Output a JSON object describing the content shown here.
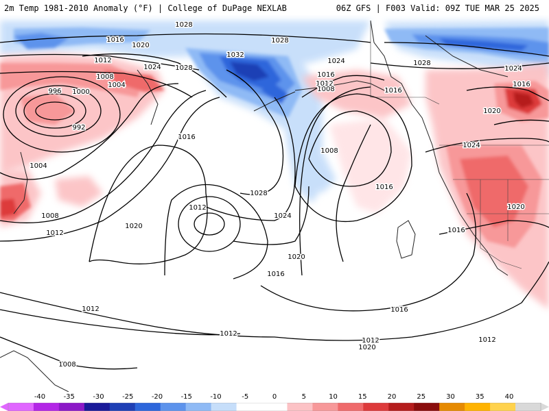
{
  "header": {
    "left_title": "2m Temp 1981-2010 Anomaly (°F) | College of DuPage NEXLAB",
    "right_title": "06Z GFS | F003 Valid: 09Z TUE MAR 25 2025"
  },
  "isobar_labels": [
    {
      "text": "1028"
    },
    {
      "text": "1016"
    },
    {
      "text": "1020"
    },
    {
      "text": "1012"
    },
    {
      "text": "1024"
    },
    {
      "text": "1008"
    },
    {
      "text": "1004"
    },
    {
      "text": "1028"
    },
    {
      "text": "1032"
    },
    {
      "text": "1028"
    },
    {
      "text": "996"
    },
    {
      "text": "1000"
    },
    {
      "text": "992"
    },
    {
      "text": "1016"
    },
    {
      "text": "1004"
    },
    {
      "text": "1008"
    },
    {
      "text": "1012"
    },
    {
      "text": "1020"
    },
    {
      "text": "1012"
    },
    {
      "text": "1028"
    },
    {
      "text": "1024"
    },
    {
      "text": "1020"
    },
    {
      "text": "1016"
    },
    {
      "text": "1016"
    },
    {
      "text": "1012"
    },
    {
      "text": "1012"
    },
    {
      "text": "1008"
    },
    {
      "text": "1024"
    },
    {
      "text": "1016"
    },
    {
      "text": "1012"
    },
    {
      "text": "1020"
    },
    {
      "text": "1008"
    },
    {
      "text": "1016"
    },
    {
      "text": "1016"
    },
    {
      "text": "1028"
    },
    {
      "text": "1024"
    },
    {
      "text": "1016"
    },
    {
      "text": "1020"
    },
    {
      "text": "1024"
    },
    {
      "text": "1020"
    },
    {
      "text": "1016"
    },
    {
      "text": "1012"
    },
    {
      "text": "1008"
    },
    {
      "text": "1012"
    }
  ],
  "colorbar": {
    "ticks": [
      "-40",
      "-35",
      "-30",
      "-25",
      "-20",
      "-15",
      "-10",
      "-5",
      "0",
      "5",
      "10",
      "15",
      "20",
      "25",
      "30",
      "35",
      "40"
    ],
    "colors": [
      "#e066ff",
      "#b326e6",
      "#8c19c7",
      "#1a1a99",
      "#1f3fb5",
      "#2d66db",
      "#5d93ec",
      "#8fbaf5",
      "#c6defa",
      "#ffffff",
      "#ffffff",
      "#fcc2c5",
      "#f79899",
      "#ef6a6b",
      "#dd3a3b",
      "#b51d1d",
      "#8a0d0d",
      "#e68a00",
      "#ffb300",
      "#ffd24d",
      "#d9d9d9"
    ]
  }
}
